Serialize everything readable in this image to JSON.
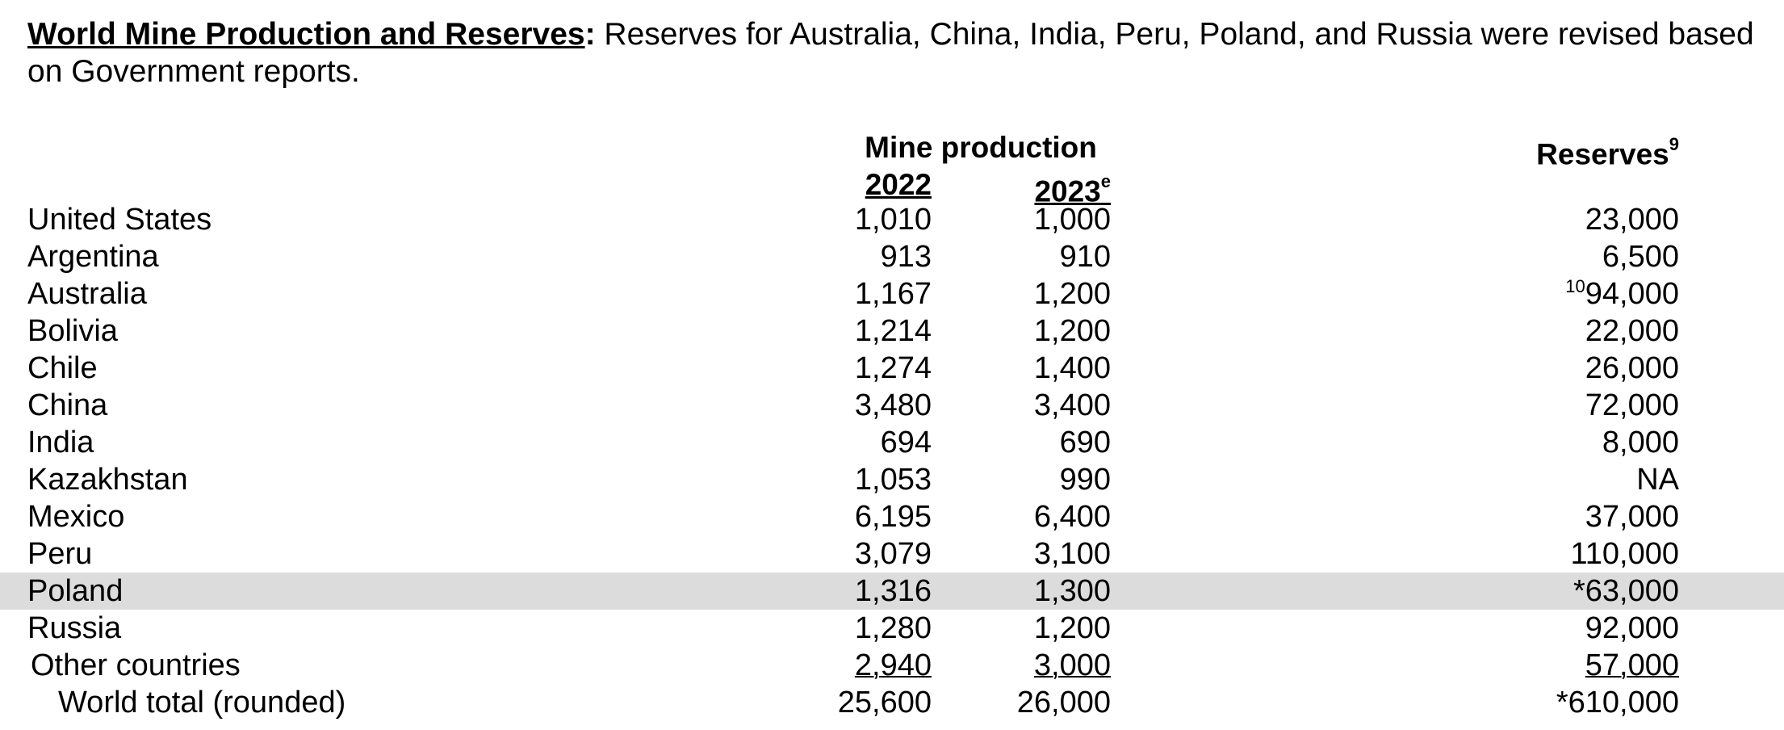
{
  "intro": {
    "lead": "World Mine Production and Reserves",
    "colon": ":",
    "body": " Reserves for Australia, China, India, Peru, Poland, and Russia were revised based on Government reports."
  },
  "headers": {
    "group": "Mine production",
    "year1": "2022",
    "year2": "2023",
    "year2_sup": "e",
    "reserves": "Reserves",
    "reserves_sup": "9"
  },
  "rows": [
    {
      "country": "United States",
      "p2022": "1,010",
      "p2023": "1,000",
      "res_prefix": "",
      "reserves": "23,000"
    },
    {
      "country": "Argentina",
      "p2022": "913",
      "p2023": "910",
      "res_prefix": "",
      "reserves": "6,500"
    },
    {
      "country": "Australia",
      "p2022": "1,167",
      "p2023": "1,200",
      "res_prefix": "10",
      "reserves": "94,000"
    },
    {
      "country": "Bolivia",
      "p2022": "1,214",
      "p2023": "1,200",
      "res_prefix": "",
      "reserves": "22,000"
    },
    {
      "country": "Chile",
      "p2022": "1,274",
      "p2023": "1,400",
      "res_prefix": "",
      "reserves": "26,000"
    },
    {
      "country": "China",
      "p2022": "3,480",
      "p2023": "3,400",
      "res_prefix": "",
      "reserves": "72,000"
    },
    {
      "country": "India",
      "p2022": "694",
      "p2023": "690",
      "res_prefix": "",
      "reserves": "8,000"
    },
    {
      "country": "Kazakhstan",
      "p2022": "1,053",
      "p2023": "990",
      "res_prefix": "",
      "reserves": "NA"
    },
    {
      "country": "Mexico",
      "p2022": "6,195",
      "p2023": "6,400",
      "res_prefix": "",
      "reserves": "37,000"
    },
    {
      "country": "Peru",
      "p2022": "3,079",
      "p2023": "3,100",
      "res_prefix": "",
      "reserves": "110,000"
    },
    {
      "country": "Poland",
      "p2022": "1,316",
      "p2023": "1,300",
      "res_prefix": "",
      "reserves": "*63,000",
      "highlighted": true
    },
    {
      "country": "Russia",
      "p2022": "1,280",
      "p2023": "1,200",
      "res_prefix": "",
      "reserves": "92,000"
    },
    {
      "country": "Other countries",
      "p2022": "2,940",
      "p2023": "3,000",
      "res_prefix": "",
      "reserves": "57,000",
      "underlined": true,
      "indent": 1
    },
    {
      "country": "World total (rounded)",
      "p2022": "25,600",
      "p2023": "26,000",
      "res_prefix": "",
      "reserves": "*610,000",
      "indent": 2
    }
  ],
  "colors": {
    "highlight": "#dcdcdc"
  }
}
